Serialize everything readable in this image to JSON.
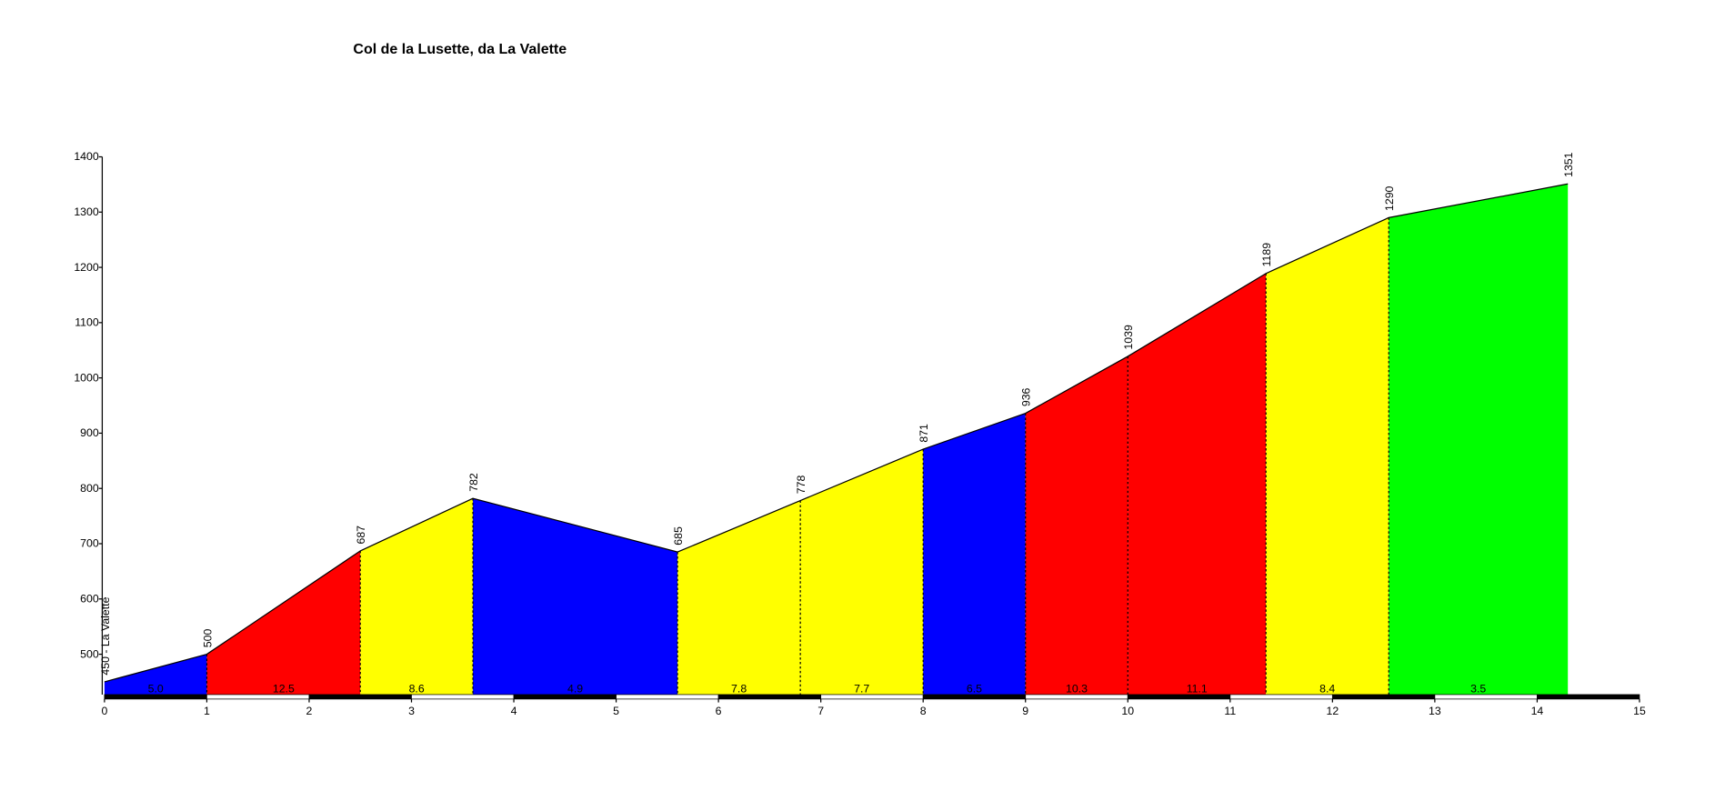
{
  "chart_data": {
    "type": "profile",
    "title": "Col de la  Lusette, da La Valette",
    "x": [
      0,
      1,
      2.5,
      3.6,
      5.6,
      6.8,
      8,
      9,
      10,
      11.35,
      12.55,
      14.3
    ],
    "values": [
      450,
      500,
      687,
      782,
      685,
      778,
      871,
      936,
      1039,
      1189,
      1290,
      1351
    ],
    "value_labels": [
      "450 - La Valette",
      "500",
      "687",
      "782",
      "685",
      "778",
      "871",
      "936",
      "1039",
      "1189",
      "1290",
      "1351"
    ],
    "segment_colors": [
      "#0000ff",
      "#ff0000",
      "#ffff00",
      "#0000ff",
      "#ffff00",
      "#ffff00",
      "#0000ff",
      "#ff0000",
      "#ff0000",
      "#ffff00",
      "#00ff00"
    ],
    "segment_labels": [
      "5.0",
      "12.5",
      "8.6",
      "4.9",
      "7.8",
      "7.7",
      "6.5",
      "10.3",
      "11.1",
      "8.4",
      "3.5"
    ],
    "xlim": [
      0,
      15
    ],
    "xticks": [
      0,
      1,
      2,
      3,
      4,
      5,
      6,
      7,
      8,
      9,
      10,
      11,
      12,
      13,
      14,
      15
    ],
    "ylim": [
      427,
      1400
    ],
    "yticks": [
      500,
      600,
      700,
      800,
      900,
      1000,
      1100,
      1200,
      1300,
      1400
    ]
  }
}
